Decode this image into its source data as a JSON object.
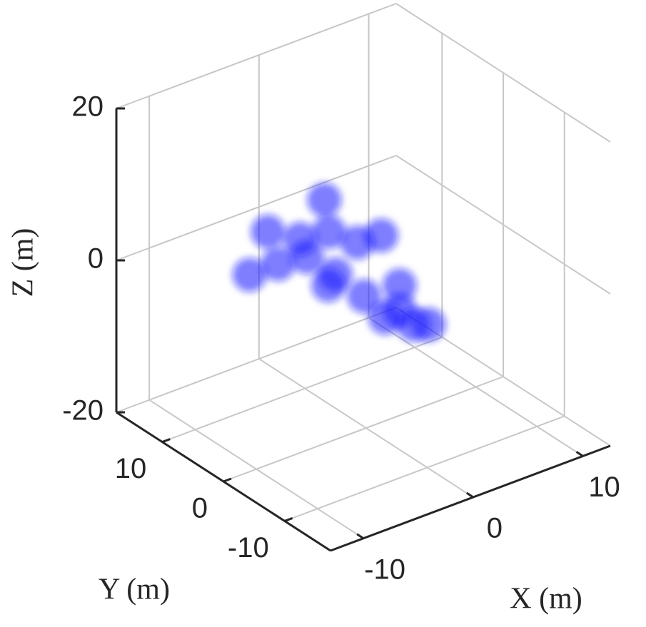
{
  "chart_data": {
    "type": "scatter3d",
    "xlabel": "X (m)",
    "ylabel": "Y (m)",
    "zlabel": "Z (m)",
    "xlim": [
      -13,
      12.5
    ],
    "ylim": [
      -17.5,
      17.5
    ],
    "zlim": [
      -20,
      20
    ],
    "xticks": [
      -10,
      0,
      10
    ],
    "yticks": [
      -10,
      0,
      10
    ],
    "zticks": [
      -20,
      0,
      20
    ],
    "grid": true,
    "color": "#1a1aff",
    "x": [
      -0.7,
      -1.1,
      -1.9,
      -1.6,
      -1.7,
      -4.0,
      -6.6,
      -1.7,
      4.4,
      4.5,
      2.5,
      1.8,
      -0.5,
      -1.6,
      -2.6,
      1.1,
      -3.0
    ],
    "y": [
      -11.5,
      -7.5,
      -3.1,
      2.1,
      6.6,
      7.2,
      7.2,
      13.0,
      14.7,
      5.6,
      5.9,
      9.3,
      9.9,
      -10.6,
      -7.8,
      -3.5,
      0.8
    ],
    "z": [
      0,
      0,
      0,
      0,
      0,
      0,
      0,
      0,
      0,
      0,
      0,
      0,
      0,
      0,
      0,
      0,
      0
    ]
  }
}
